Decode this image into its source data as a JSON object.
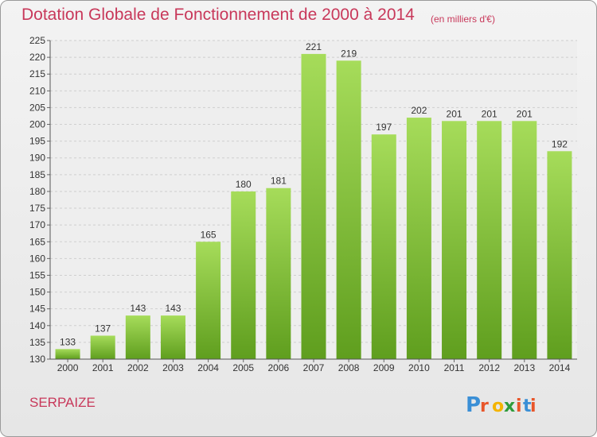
{
  "header": {
    "title": "Dotation Globale de Fonctionnement de 2000 à 2014",
    "unit_note": "(en milliers d'€)"
  },
  "footer": {
    "commune": "SERPAIZE",
    "brand_letters": [
      "P",
      "r",
      "o",
      "x",
      "i",
      "t",
      "i"
    ],
    "brand_colors": [
      "#3a8fd6",
      "#e8562a",
      "#f4b400",
      "#2e9b3a",
      "#e8562a",
      "#3a8fd6",
      "#e8562a"
    ]
  },
  "chart_data": {
    "type": "bar",
    "title": "Dotation Globale de Fonctionnement de 2000 à 2014",
    "subtitle": "(en milliers d'€)",
    "xlabel": "",
    "ylabel": "",
    "categories": [
      "2000",
      "2001",
      "2002",
      "2003",
      "2004",
      "2005",
      "2006",
      "2007",
      "2008",
      "2009",
      "2010",
      "2011",
      "2012",
      "2013",
      "2014"
    ],
    "values": [
      133,
      137,
      143,
      143,
      165,
      180,
      181,
      221,
      219,
      197,
      202,
      201,
      201,
      201,
      192
    ],
    "ylim": [
      130,
      225
    ],
    "yticks": [
      130,
      135,
      140,
      145,
      150,
      155,
      160,
      165,
      170,
      175,
      180,
      185,
      190,
      195,
      200,
      205,
      210,
      215,
      220,
      225
    ],
    "grid": true,
    "bar_color": "#7cc13a",
    "bar_color_light": "#a6dc5a",
    "bar_color_dark": "#5f9e1e",
    "data_labels": true
  }
}
